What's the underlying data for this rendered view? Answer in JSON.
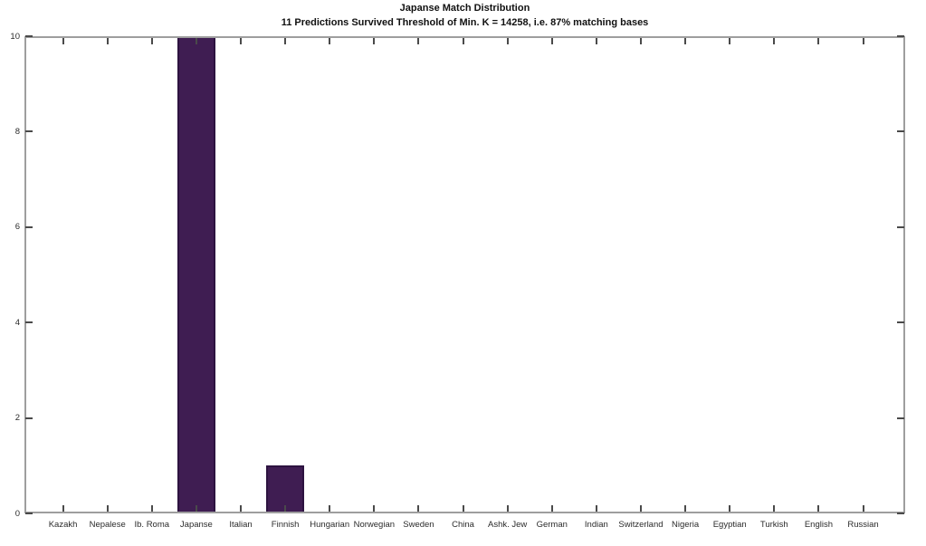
{
  "chart_data": {
    "type": "bar",
    "title": "Japanse Match Distribution",
    "subtitle": "11 Predictions Survived Threshold of Min. K = 14258, i.e. 87% matching bases",
    "categories": [
      "Kazakh",
      "Nepalese",
      "Ib. Roma",
      "Japanse",
      "Italian",
      "Finnish",
      "Hungarian",
      "Norwegian",
      "Sweden",
      "China",
      "Ashk. Jew",
      "German",
      "Indian",
      "Switzerland",
      "Nigeria",
      "Egyptian",
      "Turkish",
      "English",
      "Russian"
    ],
    "values": [
      0,
      0,
      0,
      10,
      0,
      1,
      0,
      0,
      0,
      0,
      0,
      0,
      0,
      0,
      0,
      0,
      0,
      0,
      0
    ],
    "xlabel": "",
    "ylabel": "",
    "ylim": [
      0,
      10
    ],
    "yticks": [
      0,
      2,
      4,
      6,
      8,
      10
    ],
    "grid": false,
    "legend": null,
    "colors": {
      "bar_fill": "#3f1d52",
      "bar_edge": "#2d1340",
      "axis_box": "#9e9e9e",
      "tick_mark": "#4a4a4a",
      "tick_label": "#2b2b2b",
      "title_text": "#111111",
      "background": "#ffffff"
    }
  }
}
